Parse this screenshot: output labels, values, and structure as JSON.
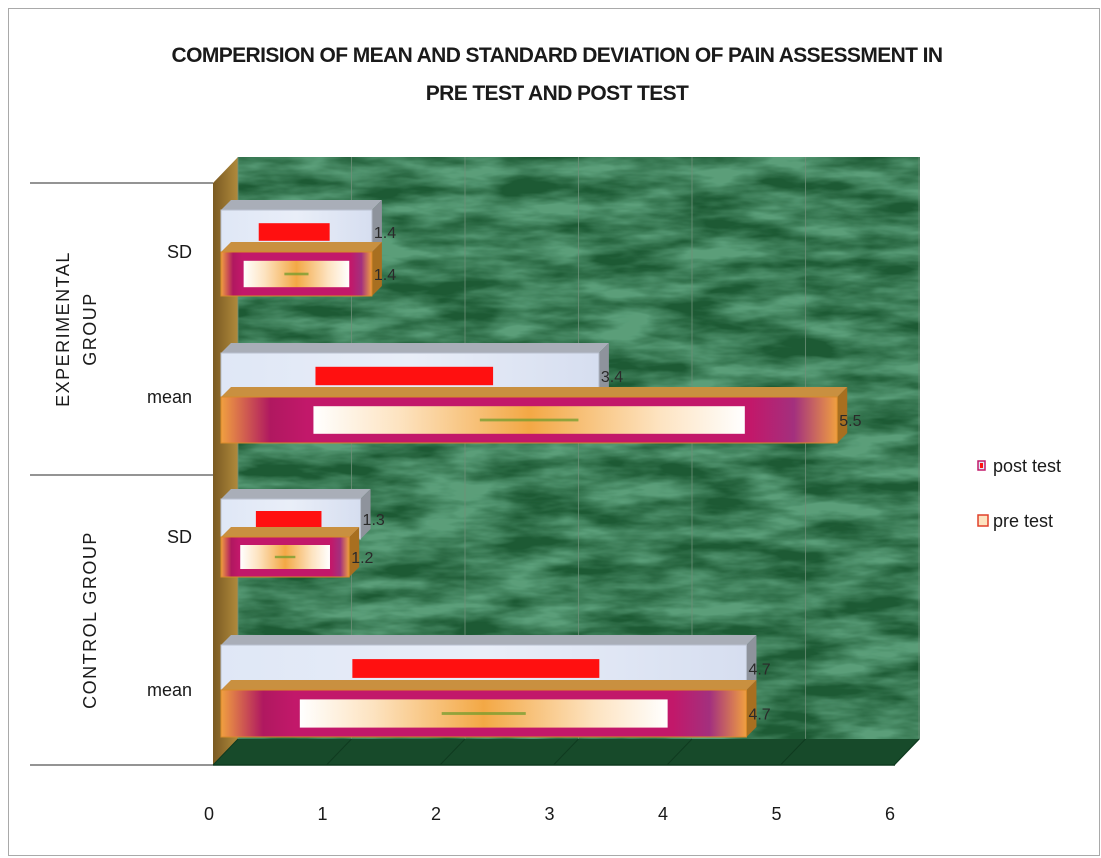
{
  "chart_data": {
    "type": "bar",
    "orientation": "horizontal",
    "title": "COMPERISION OF  MEAN AND STANDARD DEVIATION OF PAIN ASSESSMENT  IN PRE TEST AND POST TEST",
    "title_lines": [
      "COMPERISION OF  MEAN AND STANDARD DEVIATION OF PAIN ASSESSMENT  IN",
      "PRE TEST AND POST TEST"
    ],
    "xlim": [
      0,
      6
    ],
    "x_ticks": [
      "0",
      "1",
      "2",
      "3",
      "4",
      "5",
      "6"
    ],
    "grid": true,
    "legend_position": "right",
    "groups": [
      {
        "name": "EXPERIMENTAL GROUP",
        "categories": [
          {
            "label": "SD",
            "post_test": 1.4,
            "pre_test": 1.4,
            "post_label": "1.4",
            "pre_label": "1.4"
          },
          {
            "label": "mean",
            "post_test": 3.4,
            "pre_test": 5.5,
            "post_label": "3.4",
            "pre_label": "5.5"
          }
        ]
      },
      {
        "name": "CONTROL GROUP",
        "categories": [
          {
            "label": "SD",
            "post_test": 1.3,
            "pre_test": 1.2,
            "post_label": "1.3",
            "pre_label": "1.2"
          },
          {
            "label": "mean",
            "post_test": 4.7,
            "pre_test": 4.7,
            "post_label": "4.7",
            "pre_label": "4.7"
          }
        ]
      }
    ],
    "series": [
      {
        "name": "post test",
        "key": "post_test",
        "color": "#dfe6f5",
        "accent": "#ff1010"
      },
      {
        "name": "pre test",
        "key": "pre_test",
        "color": "#f0a040",
        "accent": "#b81a5a"
      }
    ],
    "colors": {
      "background": "#1d5a34",
      "floor": "#174a2a",
      "left_wall": "#a07a30",
      "post_top": "#a9aeb8",
      "pre_top": "#c99040"
    }
  }
}
